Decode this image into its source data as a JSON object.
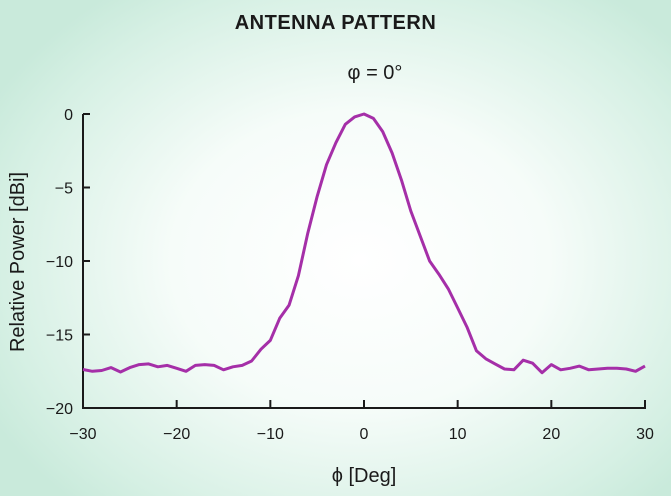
{
  "chart_data": {
    "type": "line",
    "title": "ANTENNA PATTERN",
    "subtitle": "φ = 0°",
    "xlabel": "ϕ [Deg]",
    "ylabel": "Relative Power [dBi]",
    "xlim": [
      -30,
      30
    ],
    "ylim": [
      -20,
      0
    ],
    "xticks": [
      -30,
      -20,
      -10,
      0,
      10,
      20,
      30
    ],
    "xtick_labels": [
      "−30",
      "−20",
      "−10",
      "0",
      "10",
      "20",
      "30"
    ],
    "yticks": [
      0,
      -5,
      -10,
      -15,
      -20
    ],
    "ytick_labels": [
      "0",
      "−5",
      "−10",
      "−15",
      "−20"
    ],
    "grid": false,
    "line_color": "#a52fa8",
    "x": [
      -30,
      -29,
      -28,
      -27,
      -26,
      -25,
      -24,
      -23,
      -22,
      -21,
      -20,
      -19,
      -18,
      -17,
      -16,
      -15,
      -14,
      -13,
      -12,
      -11,
      -10,
      -9,
      -8,
      -7,
      -6,
      -5,
      -4,
      -3,
      -2,
      -1,
      0,
      1,
      2,
      3,
      4,
      5,
      6,
      7,
      8,
      9,
      10,
      11,
      12,
      13,
      14,
      15,
      16,
      17,
      18,
      19,
      20,
      21,
      22,
      23,
      24,
      25,
      26,
      27,
      28,
      29,
      30
    ],
    "y": [
      -17.38,
      -17.5,
      -17.45,
      -17.25,
      -17.55,
      -17.25,
      -17.05,
      -17.0,
      -17.2,
      -17.1,
      -17.3,
      -17.5,
      -17.1,
      -17.05,
      -17.1,
      -17.4,
      -17.2,
      -17.1,
      -16.8,
      -16.0,
      -15.4,
      -13.9,
      -13.0,
      -11.0,
      -8.1,
      -5.6,
      -3.45,
      -1.95,
      -0.7,
      -0.2,
      0,
      -0.3,
      -1.2,
      -2.65,
      -4.5,
      -6.6,
      -8.3,
      -10.0,
      -10.9,
      -11.9,
      -13.2,
      -14.5,
      -16.1,
      -16.65,
      -17.0,
      -17.35,
      -17.4,
      -16.75,
      -16.95,
      -17.6,
      -17.05,
      -17.4,
      -17.3,
      -17.15,
      -17.4,
      -17.35,
      -17.3,
      -17.3,
      -17.35,
      -17.5,
      -17.15
    ]
  }
}
